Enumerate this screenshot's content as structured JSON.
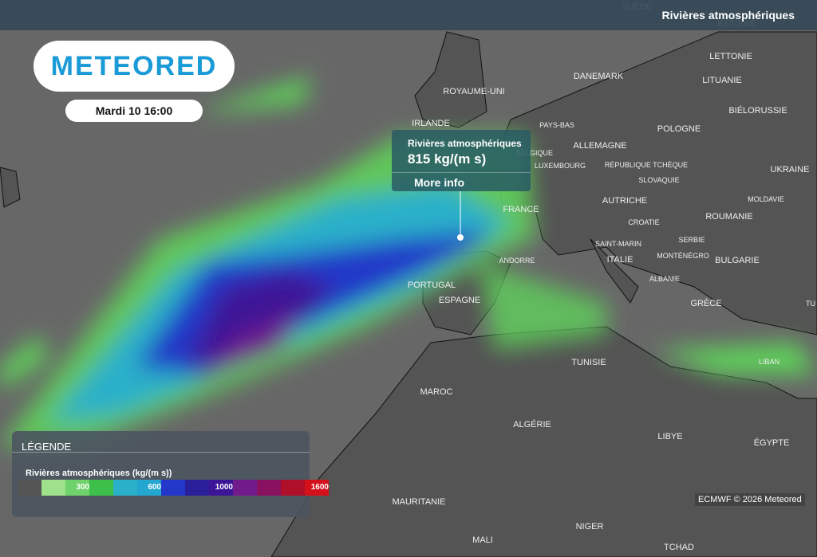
{
  "header": {
    "layer": "Rivières atmosphériques"
  },
  "logo": "METEORED",
  "date": "Mardi 10 16:00",
  "popup": {
    "title": "Rivières atmosphériques",
    "value": "815 kg/(m s)",
    "link": "More info"
  },
  "map": {
    "labels": [
      "SUÈDE",
      "ESTONIE",
      "LETTONIE",
      "LITUANIE",
      "DANEMARK",
      "ROYAUME-UNI",
      "IRLANDE",
      "PAYS-BAS",
      "BELGIQUE",
      "LUXEMBOURG",
      "ALLEMAGNE",
      "POLOGNE",
      "BIÉLORUSSIE",
      "UKRAINE",
      "RÉPUBLIQUE TCHÈQUE",
      "SLOVAQUIE",
      "FRANCE",
      "AUTRICHE",
      "MOLDAVIE",
      "ROUMANIE",
      "CROATIE",
      "SAINT-MARIN",
      "SERBIE",
      "ITALIE",
      "MONTÉNÉGRO",
      "BULGARIE",
      "ANDORRE",
      "ALBANIE",
      "PORTUGAL",
      "ESPAGNE",
      "GRÈCE",
      "TU",
      "LIBAN",
      "TUNISIE",
      "MAROC",
      "ALGÉRIE",
      "LIBYE",
      "ÉGYPTE",
      "MAURITANIE",
      "MALI",
      "NIGER",
      "TCHAD"
    ]
  },
  "legend": {
    "title": "LÉGENDE",
    "subtitle": "Rivières atmosphériques (kg/(m s))",
    "ticks": [
      300,
      600,
      1000,
      1600
    ]
  },
  "credit": "ECMWF © 2026 Meteored"
}
